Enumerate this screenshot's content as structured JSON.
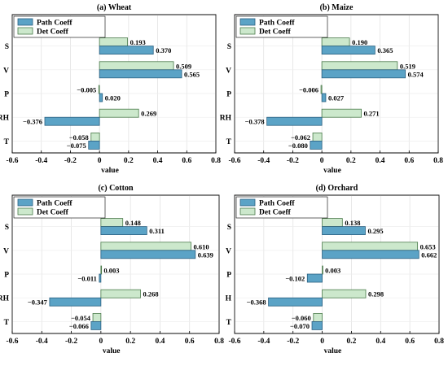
{
  "colors": {
    "path_fill": "#5ba3c6",
    "path_stroke": "#2a5f80",
    "det_fill": "#cce8cc",
    "det_stroke": "#4a7a4a"
  },
  "chart_data": [
    {
      "type": "bar",
      "orientation": "horizontal",
      "title": "(a) Wheat",
      "xlabel": "value",
      "ylabel": "",
      "xlim": [
        -0.6,
        0.8
      ],
      "xticks": [
        "-0.6",
        "-0.4",
        "-0.2",
        "0",
        "0.2",
        "0.4",
        "0.6",
        "0.8"
      ],
      "grid": true,
      "legend_position": "top-left",
      "categories": [
        "S",
        "V",
        "P",
        "RH",
        "T"
      ],
      "series": [
        {
          "name": "Path Coeff",
          "values": [
            0.37,
            0.565,
            0.02,
            -0.376,
            -0.075
          ],
          "labels": [
            "0.370",
            "0.565",
            "0.020",
            "−0.376",
            "−0.075"
          ]
        },
        {
          "name": "Det Coeff",
          "values": [
            0.193,
            0.509,
            -0.005,
            0.269,
            -0.058
          ],
          "labels": [
            "0.193",
            "0.509",
            "−0.005",
            "0.269",
            "−0.058"
          ]
        }
      ]
    },
    {
      "type": "bar",
      "orientation": "horizontal",
      "title": "(b) Maize",
      "xlabel": "value",
      "ylabel": "",
      "xlim": [
        -0.6,
        0.8
      ],
      "xticks": [
        "-0.6",
        "-0.4",
        "-0.2",
        "0",
        "0.2",
        "0.4",
        "0.6",
        "0.8"
      ],
      "grid": true,
      "legend_position": "top-left",
      "categories": [
        "S",
        "V",
        "P",
        "RH",
        "T"
      ],
      "series": [
        {
          "name": "Path Coeff",
          "values": [
            0.365,
            0.574,
            0.027,
            -0.378,
            -0.08
          ],
          "labels": [
            "0.365",
            "0.574",
            "0.027",
            "−0.378",
            "−0.080"
          ]
        },
        {
          "name": "Det Coeff",
          "values": [
            0.19,
            0.519,
            -0.006,
            0.271,
            -0.062
          ],
          "labels": [
            "0.190",
            "0.519",
            "−0.006",
            "0.271",
            "−0.062"
          ]
        }
      ]
    },
    {
      "type": "bar",
      "orientation": "horizontal",
      "title": "(c) Cotton",
      "xlabel": "value",
      "ylabel": "",
      "xlim": [
        -0.6,
        0.8
      ],
      "xticks": [
        "-0.6",
        "-0.4",
        "-0.2",
        "0",
        "0.2",
        "0.4",
        "0.6",
        "0.8"
      ],
      "grid": true,
      "legend_position": "top-left",
      "categories": [
        "S",
        "V",
        "P",
        "RH",
        "T"
      ],
      "series": [
        {
          "name": "Path Coeff",
          "values": [
            0.311,
            0.639,
            -0.011,
            -0.347,
            -0.066
          ],
          "labels": [
            "0.311",
            "0.639",
            "−0.011",
            "−0.347",
            "−0.066"
          ]
        },
        {
          "name": "Det Coeff",
          "values": [
            0.148,
            0.61,
            0.003,
            0.268,
            -0.054
          ],
          "labels": [
            "0.148",
            "0.610",
            "0.003",
            "0.268",
            "−0.054"
          ]
        }
      ]
    },
    {
      "type": "bar",
      "orientation": "horizontal",
      "title": "(d) Orchard",
      "xlabel": "value",
      "ylabel": "",
      "xlim": [
        -0.6,
        0.8
      ],
      "xticks": [
        "-0.6",
        "-0.4",
        "-0.2",
        "0",
        "0.2",
        "0.4",
        "0.6",
        "0.8"
      ],
      "grid": true,
      "legend_position": "top-left",
      "categories": [
        "S",
        "V",
        "P",
        "H",
        "T"
      ],
      "series": [
        {
          "name": "Path Coeff",
          "values": [
            0.295,
            0.662,
            -0.102,
            -0.368,
            -0.07
          ],
          "labels": [
            "0.295",
            "0.662",
            "−0.102",
            "−0.368",
            "−0.070"
          ]
        },
        {
          "name": "Det Coeff",
          "values": [
            0.138,
            0.653,
            0.003,
            0.298,
            -0.06
          ],
          "labels": [
            "0.138",
            "0.653",
            "0.003",
            "0.298",
            "−0.060"
          ]
        }
      ]
    }
  ]
}
